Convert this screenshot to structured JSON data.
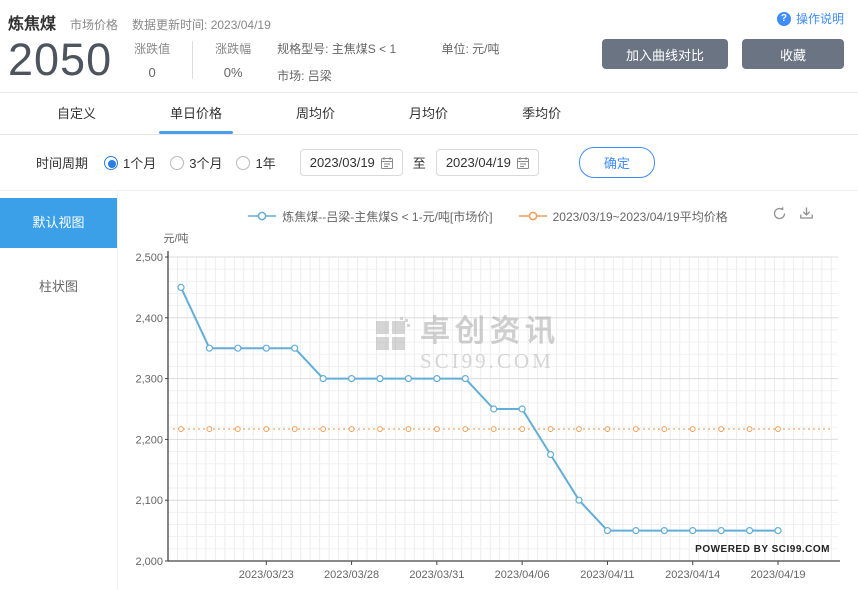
{
  "header": {
    "title": "炼焦煤",
    "subtitle": "市场价格",
    "update_time": "数据更新时间: 2023/04/19",
    "price": "2050",
    "change_value_label": "涨跌值",
    "change_value": "0",
    "change_pct_label": "涨跌幅",
    "change_pct": "0%",
    "spec": "规格型号: 主焦煤S < 1",
    "unit": "单位: 元/吨",
    "market": "市场: 吕梁",
    "help_link": "操作说明",
    "compare_button": "加入曲线对比",
    "favorite_button": "收藏"
  },
  "tabs": [
    {
      "label": "自定义",
      "active": false
    },
    {
      "label": "单日价格",
      "active": true
    },
    {
      "label": "周均价",
      "active": false
    },
    {
      "label": "月均价",
      "active": false
    },
    {
      "label": "季均价",
      "active": false
    }
  ],
  "filter": {
    "period_label": "时间周期",
    "options": [
      {
        "label": "1个月",
        "selected": true
      },
      {
        "label": "3个月",
        "selected": false
      },
      {
        "label": "1年",
        "selected": false
      }
    ],
    "start_date": "2023/03/19",
    "to_label": "至",
    "end_date": "2023/04/19",
    "confirm_button": "确定"
  },
  "sidebar": {
    "items": [
      {
        "label": "默认视图",
        "active": true
      },
      {
        "label": "柱状图",
        "active": false
      }
    ]
  },
  "chart": {
    "watermark_line1": "卓创资讯",
    "watermark_line2": "SCI99.COM",
    "icons": {
      "help": "question-circle-icon",
      "refresh": "refresh-icon",
      "download": "download-icon",
      "calendar": "calendar-icon"
    }
  },
  "colors": {
    "accent_blue": "#3ba0e8",
    "price_line": "#62aed8",
    "average_line": "#ed9e57",
    "button_gray": "#6a7483",
    "link_blue": "#3f8cff"
  },
  "chart_data": {
    "type": "line",
    "title": "",
    "xlabel": "",
    "ylabel": "元/吨",
    "ylim": [
      2000,
      2500
    ],
    "ytick_step": 100,
    "grid": true,
    "legend_position": "top",
    "powered_by": "POWERED BY SCI99.COM",
    "x": [
      "2023/03/20",
      "2023/03/21",
      "2023/03/22",
      "2023/03/23",
      "2023/03/24",
      "2023/03/27",
      "2023/03/28",
      "2023/03/29",
      "2023/03/30",
      "2023/03/31",
      "2023/04/03",
      "2023/04/04",
      "2023/04/06",
      "2023/04/07",
      "2023/04/10",
      "2023/04/11",
      "2023/04/12",
      "2023/04/13",
      "2023/04/14",
      "2023/04/17",
      "2023/04/18",
      "2023/04/19"
    ],
    "xtick_indices": [
      3,
      6,
      9,
      12,
      15,
      18,
      21
    ],
    "series": [
      {
        "name": "炼焦煤--吕梁-主焦煤S < 1-元/吨[市场价]",
        "type": "line",
        "color": "#62aed8",
        "values": [
          2450,
          2350,
          2350,
          2350,
          2350,
          2300,
          2300,
          2300,
          2300,
          2300,
          2300,
          2250,
          2250,
          2175,
          2100,
          2050,
          2050,
          2050,
          2050,
          2050,
          2050,
          2050
        ]
      },
      {
        "name": "2023/03/19~2023/04/19平均价格",
        "type": "hline",
        "color": "#ed9e57",
        "value": 2217
      }
    ]
  }
}
